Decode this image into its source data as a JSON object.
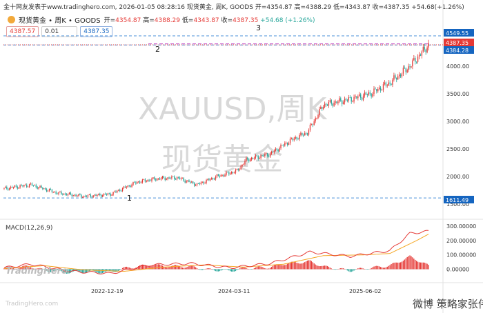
{
  "header": {
    "site_line": "金十网友发表于www.tradinghero.com, 2026-01-05 08:28:16 现货黄金, 周K, GOODS 开=4354.87 高=4388.29 低=4343.87 收=4387.35 +54.68(+1.26%)",
    "symbol": "现货黄金 • 周K • GOODS",
    "open_label": "开=",
    "open": "4354.87",
    "high_label": "高=",
    "high": "4388.29",
    "low_label": "低=",
    "low": "4343.87",
    "close_label": "收=",
    "close": "4387.35",
    "change": "+54.68 (+1.26%)",
    "bid": "4387.57",
    "spread": "0.01",
    "ask": "4387.35"
  },
  "watermark": {
    "line1": "XAUUSD,周K",
    "line2": "现货黄金"
  },
  "brand": "TradingHero",
  "brand_small": "TradingHero.com",
  "corner_mark": "微博 策略家张伟",
  "annotations": [
    "1",
    "2",
    "3"
  ],
  "price_axis": {
    "ticks": [
      "1500.00",
      "2000.00",
      "2500.00",
      "3000.00",
      "3500.00",
      "4000.00"
    ],
    "tags": [
      {
        "label": "4549.55",
        "color": "#1565c0"
      },
      {
        "label": "4387.35",
        "color": "#e53935"
      },
      {
        "label": "4384.28",
        "color": "#1565c0"
      },
      {
        "label": "1611.49",
        "color": "#1565c0"
      }
    ]
  },
  "macd_axis": {
    "label": "MACD(12,26,9)",
    "ticks": [
      "0.00000",
      "100.00000",
      "200.00000",
      "300.00000"
    ]
  },
  "time_axis": [
    "2022-12-19",
    "2024-03-11",
    "2025-06-02"
  ],
  "colors": {
    "up": "#e53935",
    "down": "#26a69a",
    "dif": "#e53935",
    "dea": "#f5a623",
    "ref": "#4a90d9"
  },
  "chart_data": {
    "type": "candlestick",
    "title": "XAUUSD,周K",
    "y_range": [
      1450,
      4650
    ],
    "ref_lines": [
      4549.55,
      4384.28,
      1611.49
    ],
    "anchors_x": [
      0,
      20,
      40,
      60,
      80,
      100,
      115,
      130,
      145,
      160,
      175,
      182,
      190,
      200,
      215,
      228,
      240,
      260,
      275,
      290,
      305,
      319
    ],
    "anchors_price": [
      1780,
      1850,
      1700,
      1640,
      1680,
      1900,
      1960,
      1980,
      1850,
      2000,
      2100,
      2300,
      2350,
      2410,
      2650,
      2800,
      3300,
      3400,
      3500,
      3700,
      4000,
      4387
    ],
    "macd": {
      "label": "MACD(12,26,9)",
      "y_range": [
        -70,
        330
      ],
      "dif_anchors_x": [
        0,
        20,
        50,
        80,
        110,
        140,
        170,
        200,
        230,
        260,
        290,
        305,
        319
      ],
      "dif_anchors_v": [
        10,
        35,
        -15,
        -30,
        30,
        40,
        10,
        40,
        120,
        90,
        130,
        250,
        265
      ],
      "dea_anchors_x": [
        0,
        30,
        60,
        90,
        120,
        150,
        180,
        210,
        240,
        270,
        290,
        310,
        319
      ],
      "dea_anchors_v": [
        5,
        25,
        -5,
        -15,
        15,
        30,
        15,
        35,
        95,
        100,
        110,
        200,
        245
      ]
    }
  }
}
